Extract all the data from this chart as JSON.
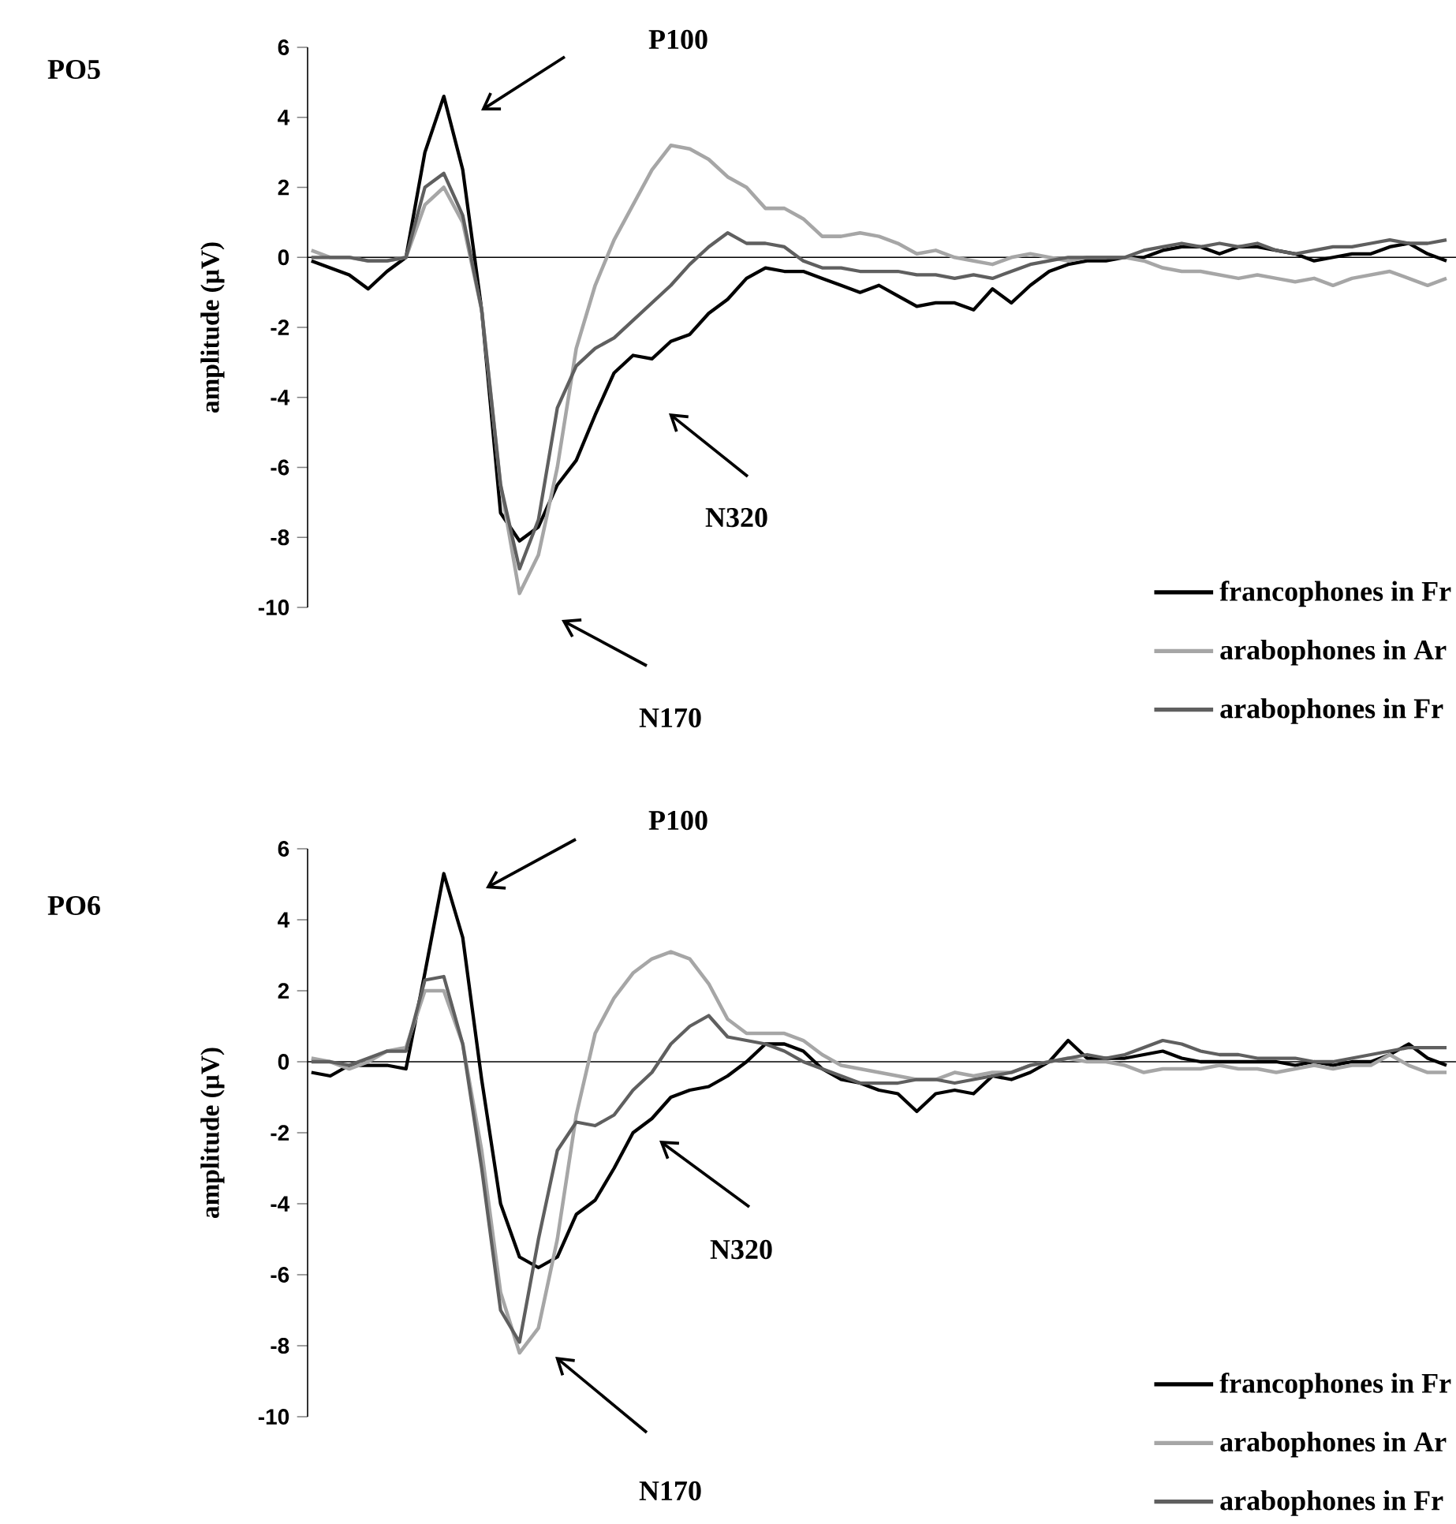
{
  "chart_data": [
    {
      "type": "line",
      "title": "PO5",
      "ylabel": "amplitude (µV)",
      "annotations": [
        "P100",
        "N170",
        "N320"
      ],
      "categories": [
        null,
        null,
        null,
        null,
        null,
        null,
        null,
        null,
        null,
        null,
        null,
        null,
        null,
        null,
        null,
        null,
        null,
        null,
        null,
        null,
        null,
        null,
        null,
        null,
        null,
        null,
        null,
        null,
        null,
        null,
        null,
        null,
        null,
        null,
        null,
        null,
        null,
        null,
        null,
        null,
        null,
        null,
        null,
        null,
        null,
        null,
        null,
        null,
        null,
        null,
        null,
        null,
        null,
        null,
        null,
        null,
        null,
        null,
        null,
        null,
        null
      ],
      "ylim": [
        -10,
        6
      ],
      "yticks": [
        -10,
        -8,
        -6,
        -4,
        -2,
        0,
        2,
        4,
        6
      ],
      "tick_labels": "y",
      "legend": "bottom right",
      "series": [
        {
          "name": "francophones in Fr",
          "color": "#000000",
          "values": [
            -0.1,
            -0.3,
            -0.5,
            -0.9,
            -0.4,
            0,
            3,
            4.6,
            2.5,
            -1.5,
            -7.3,
            -8.1,
            -7.7,
            -6.5,
            -5.8,
            -4.5,
            -3.3,
            -2.8,
            -2.9,
            -2.4,
            -2.2,
            -1.6,
            -1.2,
            -0.6,
            -0.3,
            -0.4,
            -0.4,
            -0.6,
            -0.8,
            -1,
            -0.8,
            -1.1,
            -1.4,
            -1.3,
            -1.3,
            -1.5,
            -0.9,
            -1.3,
            -0.8,
            -0.4,
            -0.2,
            -0.1,
            -0.1,
            0,
            0,
            0.2,
            0.3,
            0.3,
            0.1,
            0.3,
            0.3,
            0.2,
            0.1,
            -0.1,
            0,
            0.1,
            0.1,
            0.3,
            0.4,
            0.1,
            -0.1
          ]
        },
        {
          "name": "arabophones in Ar",
          "color": "#a6a6a6",
          "values": [
            0.2,
            0,
            0,
            -0.1,
            -0.1,
            0,
            1.5,
            2,
            1,
            -1.5,
            -6.5,
            -9.6,
            -8.5,
            -6,
            -2.6,
            -0.8,
            0.5,
            1.5,
            2.5,
            3.2,
            3.1,
            2.8,
            2.3,
            2,
            1.4,
            1.4,
            1.1,
            0.6,
            0.6,
            0.7,
            0.6,
            0.4,
            0.1,
            0.2,
            0,
            -0.1,
            -0.2,
            0,
            0.1,
            0,
            -0.1,
            0,
            0,
            0,
            -0.1,
            -0.3,
            -0.4,
            -0.4,
            -0.5,
            -0.6,
            -0.5,
            -0.6,
            -0.7,
            -0.6,
            -0.8,
            -0.6,
            -0.5,
            -0.4,
            -0.6,
            -0.8,
            -0.6
          ]
        },
        {
          "name": "arabophones in Fr",
          "color": "#5f5f5f",
          "values": [
            0,
            0,
            0,
            -0.1,
            -0.1,
            0,
            2,
            2.4,
            1.2,
            -1.5,
            -6.5,
            -8.9,
            -7.5,
            -4.3,
            -3.1,
            -2.6,
            -2.3,
            -1.8,
            -1.3,
            -0.8,
            -0.2,
            0.3,
            0.7,
            0.4,
            0.4,
            0.3,
            -0.1,
            -0.3,
            -0.3,
            -0.4,
            -0.4,
            -0.4,
            -0.5,
            -0.5,
            -0.6,
            -0.5,
            -0.6,
            -0.4,
            -0.2,
            -0.1,
            0,
            0,
            0,
            0,
            0.2,
            0.3,
            0.4,
            0.3,
            0.4,
            0.3,
            0.4,
            0.2,
            0.1,
            0.2,
            0.3,
            0.3,
            0.4,
            0.5,
            0.4,
            0.4,
            0.5
          ]
        }
      ]
    },
    {
      "type": "line",
      "title": "PO6",
      "ylabel": "amplitude (µV)",
      "annotations": [
        "P100",
        "N170",
        "N320"
      ],
      "categories": [
        null,
        null,
        null,
        null,
        null,
        null,
        null,
        null,
        null,
        null,
        null,
        null,
        null,
        null,
        null,
        null,
        null,
        null,
        null,
        null,
        null,
        null,
        null,
        null,
        null,
        null,
        null,
        null,
        null,
        null,
        null,
        null,
        null,
        null,
        null,
        null,
        null,
        null,
        null,
        null,
        null,
        null,
        null,
        null,
        null,
        null,
        null,
        null,
        null,
        null,
        null,
        null,
        null,
        null,
        null,
        null,
        null,
        null,
        null,
        null,
        null
      ],
      "ylim": [
        -10,
        6
      ],
      "yticks": [
        -10,
        -8,
        -6,
        -4,
        -2,
        0,
        2,
        4,
        6
      ],
      "tick_labels": "y",
      "legend": "bottom right",
      "series": [
        {
          "name": "francophones in Fr",
          "color": "#000000",
          "values": [
            -0.3,
            -0.4,
            -0.1,
            -0.1,
            -0.1,
            -0.2,
            2.5,
            5.3,
            3.5,
            -0.5,
            -4,
            -5.5,
            -5.8,
            -5.5,
            -4.3,
            -3.9,
            -3,
            -2,
            -1.6,
            -1,
            -0.8,
            -0.7,
            -0.4,
            0,
            0.5,
            0.5,
            0.3,
            -0.2,
            -0.5,
            -0.6,
            -0.8,
            -0.9,
            -1.4,
            -0.9,
            -0.8,
            -0.9,
            -0.4,
            -0.5,
            -0.3,
            0,
            0.6,
            0.1,
            0.1,
            0.1,
            0.2,
            0.3,
            0.1,
            0,
            0,
            0,
            0,
            0,
            -0.1,
            0,
            -0.1,
            0,
            0,
            0.2,
            0.5,
            0.1,
            -0.1
          ]
        },
        {
          "name": "arabophones in Ar",
          "color": "#a6a6a6",
          "values": [
            0.1,
            0,
            -0.2,
            0,
            0.3,
            0.4,
            2,
            2,
            0.5,
            -2.5,
            -6.5,
            -8.2,
            -7.5,
            -5,
            -1.5,
            0.8,
            1.8,
            2.5,
            2.9,
            3.1,
            2.9,
            2.2,
            1.2,
            0.8,
            0.8,
            0.8,
            0.6,
            0.2,
            -0.1,
            -0.2,
            -0.3,
            -0.4,
            -0.5,
            -0.5,
            -0.3,
            -0.4,
            -0.3,
            -0.3,
            -0.1,
            0,
            0.1,
            0,
            0,
            -0.1,
            -0.3,
            -0.2,
            -0.2,
            -0.2,
            -0.1,
            -0.2,
            -0.2,
            -0.3,
            -0.2,
            -0.1,
            -0.2,
            -0.1,
            -0.1,
            0.2,
            -0.1,
            -0.3,
            -0.3
          ]
        },
        {
          "name": "arabophones in Fr",
          "color": "#5f5f5f",
          "values": [
            0,
            0,
            -0.1,
            0.1,
            0.3,
            0.3,
            2.3,
            2.4,
            0.5,
            -3,
            -7,
            -7.9,
            -5,
            -2.5,
            -1.7,
            -1.8,
            -1.5,
            -0.8,
            -0.3,
            0.5,
            1,
            1.3,
            0.7,
            0.6,
            0.5,
            0.3,
            0,
            -0.2,
            -0.4,
            -0.6,
            -0.6,
            -0.6,
            -0.5,
            -0.5,
            -0.6,
            -0.5,
            -0.4,
            -0.3,
            -0.1,
            0,
            0.1,
            0.2,
            0.1,
            0.2,
            0.4,
            0.6,
            0.5,
            0.3,
            0.2,
            0.2,
            0.1,
            0.1,
            0.1,
            0,
            0,
            0.1,
            0.2,
            0.3,
            0.4,
            0.4,
            0.4
          ]
        }
      ]
    }
  ]
}
